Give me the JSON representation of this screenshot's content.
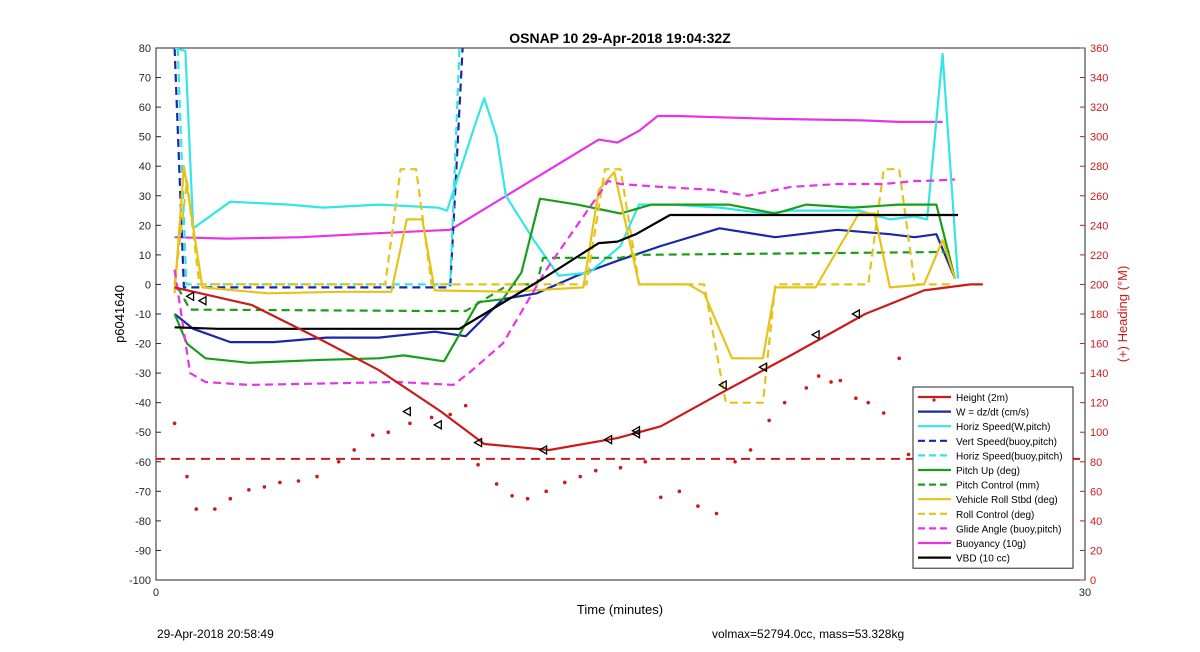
{
  "chart_data": {
    "type": "line",
    "title": "OSNAP 10 29-Apr-2018 19:04:32Z",
    "xlabel": "Time (minutes)",
    "ylabel": "p6041640",
    "y2label": "(+) Heading (°M)",
    "xlim": [
      0,
      30
    ],
    "ylim": [
      -100,
      80
    ],
    "y2lim": [
      0,
      360
    ],
    "xticks": [
      "0",
      "30"
    ],
    "yticks": [
      "-100",
      "-90",
      "-80",
      "-70",
      "-60",
      "-50",
      "-40",
      "-30",
      "-20",
      "-10",
      "0",
      "10",
      "20",
      "30",
      "40",
      "50",
      "60",
      "70",
      "80"
    ],
    "y2ticks": [
      "0",
      "20",
      "40",
      "60",
      "80",
      "100",
      "120",
      "140",
      "160",
      "180",
      "200",
      "220",
      "240",
      "260",
      "280",
      "300",
      "320",
      "340",
      "360"
    ],
    "grid": false,
    "legend_position": "bottom-right",
    "series": [
      {
        "name": "Height (2m)",
        "color": "#cc1a1a",
        "dash": false,
        "x": [
          0.6,
          3.1,
          5.2,
          7.2,
          9.2,
          10.6,
          12.7,
          14.9,
          16.3,
          18.2,
          20.5,
          22.9,
          24.8,
          26.3,
          26.7
        ],
        "y": [
          -1,
          -7,
          -18,
          -29,
          -43,
          -54,
          -56,
          -52,
          -48,
          -37,
          -24,
          -10,
          -2,
          0,
          0
        ]
      },
      {
        "name": "W = dz/dt (cm/s)",
        "color": "#1a27a8",
        "dash": false,
        "x": [
          0.6,
          1.2,
          2.4,
          3.8,
          5.5,
          7.2,
          9.0,
          10.0,
          11.2,
          12.3,
          13.6,
          14.9,
          16.3,
          18.2,
          20.0,
          22.0,
          23.7,
          24.5,
          25.2,
          25.8
        ],
        "y": [
          -10,
          -15,
          -19.5,
          -19.5,
          -18,
          -18,
          -16,
          -17.5,
          -5,
          -3,
          3,
          8,
          13,
          19,
          16,
          18.5,
          17,
          16,
          17,
          2
        ]
      },
      {
        "name": "Horiz Speed(W,pitch)",
        "color": "#33e6e6",
        "dash": false,
        "x": [
          0.6,
          0.95,
          1.2,
          2.4,
          4.3,
          5.4,
          7.2,
          9.1,
          9.4,
          10.3,
          10.6,
          11.0,
          11.3,
          12.2,
          13.0,
          14.0,
          15.0,
          15.6,
          16.7,
          18.2,
          19.7,
          20.5,
          22.1,
          22.7,
          23.7,
          24.5,
          24.9,
          25.4,
          25.9
        ],
        "y": [
          80,
          79,
          19,
          28,
          27,
          26,
          27,
          26,
          25,
          54,
          63,
          50,
          30,
          15,
          3,
          4,
          13,
          27,
          27,
          26,
          24,
          25,
          25,
          25,
          22,
          23,
          22,
          78,
          2
        ]
      },
      {
        "name": "Vert Speed(buoy,pitch)",
        "color": "#1a27a8",
        "dash": true,
        "x": [
          0.6,
          0.9,
          9.5,
          9.9
        ],
        "y": [
          80,
          -1,
          -1,
          80
        ]
      },
      {
        "name": "Horiz Speed(buoy,pitch)",
        "color": "#33e6e6",
        "dash": true,
        "x": [
          0.7,
          0.98,
          1.2,
          9.4,
          9.5,
          9.8
        ],
        "y": [
          80,
          0,
          0,
          0,
          0,
          80
        ]
      },
      {
        "name": "Pitch Up (deg)",
        "color": "#1a9e1a",
        "dash": false,
        "x": [
          0.6,
          1.0,
          1.6,
          3.0,
          5.4,
          7.2,
          8.0,
          9.3,
          10.4,
          11.2,
          11.8,
          12.4,
          13.6,
          15.0,
          16.0,
          17.0,
          18.5,
          20.0,
          21.0,
          22.5,
          24.0,
          25.2,
          25.8
        ],
        "y": [
          -10,
          -20,
          -25,
          -26.5,
          -25.5,
          -25,
          -24,
          -26,
          -6,
          -5,
          4,
          29,
          27,
          24,
          27,
          27,
          27,
          24,
          27,
          26,
          27,
          27,
          2
        ]
      },
      {
        "name": "Pitch Control (mm)",
        "color": "#1a9e1a",
        "dash": true,
        "x": [
          0.7,
          1.1,
          9.0,
          10.0,
          11.4,
          12.3,
          12.5,
          15.0,
          15.4,
          25.8
        ],
        "y": [
          -1,
          -8.5,
          -9,
          -9,
          0,
          0,
          9,
          9,
          10,
          11
        ]
      },
      {
        "name": "Vehicle Roll Stbd (deg)",
        "color": "#e6c31a",
        "dash": false,
        "x": [
          0.6,
          0.9,
          1.5,
          3.6,
          6.0,
          7.6,
          8.1,
          8.6,
          9.0,
          11.4,
          13.8,
          14.3,
          14.8,
          15.6,
          16.2,
          17.2,
          17.7,
          18.6,
          19.0,
          19.6,
          20.0,
          20.6,
          21.3,
          22.7,
          23.2,
          23.7,
          24.8,
          25.4,
          25.8
        ],
        "y": [
          -3,
          40,
          -1,
          -3,
          -2.5,
          -2.5,
          22,
          22,
          -2,
          -2.5,
          -1,
          32,
          38,
          0,
          0,
          0,
          -3,
          -25,
          -25,
          -25,
          -1,
          -1,
          -1,
          24,
          24,
          -1,
          0,
          15,
          2
        ]
      },
      {
        "name": "Roll Control (deg)",
        "color": "#e6c31a",
        "dash": true,
        "x": [
          0.6,
          1.0,
          1.4,
          7.4,
          7.9,
          8.4,
          8.9,
          13.9,
          14.5,
          15.0,
          15.6,
          17.7,
          18.4,
          19.1,
          19.6,
          20.0,
          23.0,
          23.5,
          24.0,
          24.5,
          25.3,
          25.8
        ],
        "y": [
          0,
          35,
          0,
          0,
          39,
          39,
          0,
          0,
          39,
          39,
          0,
          0,
          -40,
          -40,
          -40,
          0,
          0,
          39,
          39,
          0,
          0,
          0
        ]
      },
      {
        "name": "Glide Angle (buoy,pitch)",
        "color": "#e633e6",
        "dash": true,
        "x": [
          0.6,
          1.1,
          1.6,
          3.0,
          5.4,
          7.8,
          9.6,
          10.1,
          11.2,
          12.6,
          14.6,
          15.0,
          16.3,
          18.0,
          19.1,
          20.5,
          22.0,
          23.5,
          24.5,
          24.8,
          25.8
        ],
        "y": [
          5,
          -30,
          -33,
          -34,
          -33.5,
          -33,
          -34,
          -30,
          -20,
          5,
          35,
          34,
          33,
          32,
          30,
          33,
          34,
          34,
          35,
          35,
          35.5
        ]
      },
      {
        "name": "Buoyancy (10g)",
        "color": "#e633e6",
        "dash": false,
        "x": [
          0.6,
          2.3,
          4.7,
          7.1,
          9.5,
          14.3,
          14.9,
          15.6,
          16.2,
          16.8,
          20.0,
          22.8,
          24.0,
          25.4
        ],
        "y": [
          16,
          15.5,
          16,
          17.3,
          18.5,
          49,
          48,
          52,
          57,
          57,
          56,
          55.5,
          55,
          55
        ]
      },
      {
        "name": "VBD (10 cc)",
        "color": "#000000",
        "dash": false,
        "x": [
          0.6,
          2.0,
          5.4,
          9.8,
          10.6,
          12.5,
          14.3,
          14.9,
          15.5,
          16.6,
          17.2,
          18.2,
          19.7,
          25.9
        ],
        "y": [
          -14.5,
          -15,
          -15,
          -15,
          -10,
          2,
          14,
          14.5,
          17,
          23.5,
          23.5,
          23.5,
          23.5,
          23.5
        ]
      }
    ],
    "reference_line": {
      "axis": "y2",
      "value": 82,
      "color": "#cc1a1a",
      "dash": true
    },
    "heading_dots": {
      "axis": "y2",
      "color": "#cc1a1a",
      "x": [
        0.6,
        1.0,
        1.3,
        1.9,
        2.4,
        3.0,
        3.5,
        4.0,
        4.6,
        5.2,
        5.9,
        6.4,
        7.0,
        7.5,
        8.2,
        8.9,
        9.5,
        10.0,
        10.4,
        11.0,
        11.5,
        12.0,
        12.6,
        13.2,
        13.7,
        14.2,
        15.0,
        15.8,
        16.3,
        16.9,
        17.5,
        18.1,
        18.7,
        19.2,
        19.8,
        20.3,
        21.0,
        21.4,
        21.8,
        22.1,
        22.6,
        23.0,
        23.5,
        24.0,
        24.3,
        24.6,
        25.2
      ],
      "y": [
        106,
        70,
        48,
        48,
        55,
        61,
        63,
        66,
        67,
        70,
        80,
        88,
        98,
        100,
        106,
        110,
        112,
        118,
        78,
        65,
        57,
        55,
        60,
        66,
        70,
        74,
        76,
        80,
        56,
        60,
        50,
        45,
        80,
        88,
        108,
        120,
        130,
        138,
        134,
        135,
        123,
        120,
        113,
        150,
        85,
        70,
        72
      ]
    },
    "height_markers": {
      "x": [
        1.1,
        1.5,
        8.1,
        9.1,
        10.4,
        12.5,
        14.6,
        15.5,
        15.5,
        18.3,
        19.6,
        21.3,
        22.6
      ],
      "y": [
        -4,
        -5.5,
        -43,
        -47.5,
        -53.5,
        -56,
        -52.5,
        -49.5,
        -50.5,
        -34,
        -28,
        -17,
        -10
      ]
    }
  },
  "footer": {
    "timestamp": "29-Apr-2018 20:58:49",
    "volmax_mass": "volmax=52794.0cc, mass=53.328kg"
  }
}
